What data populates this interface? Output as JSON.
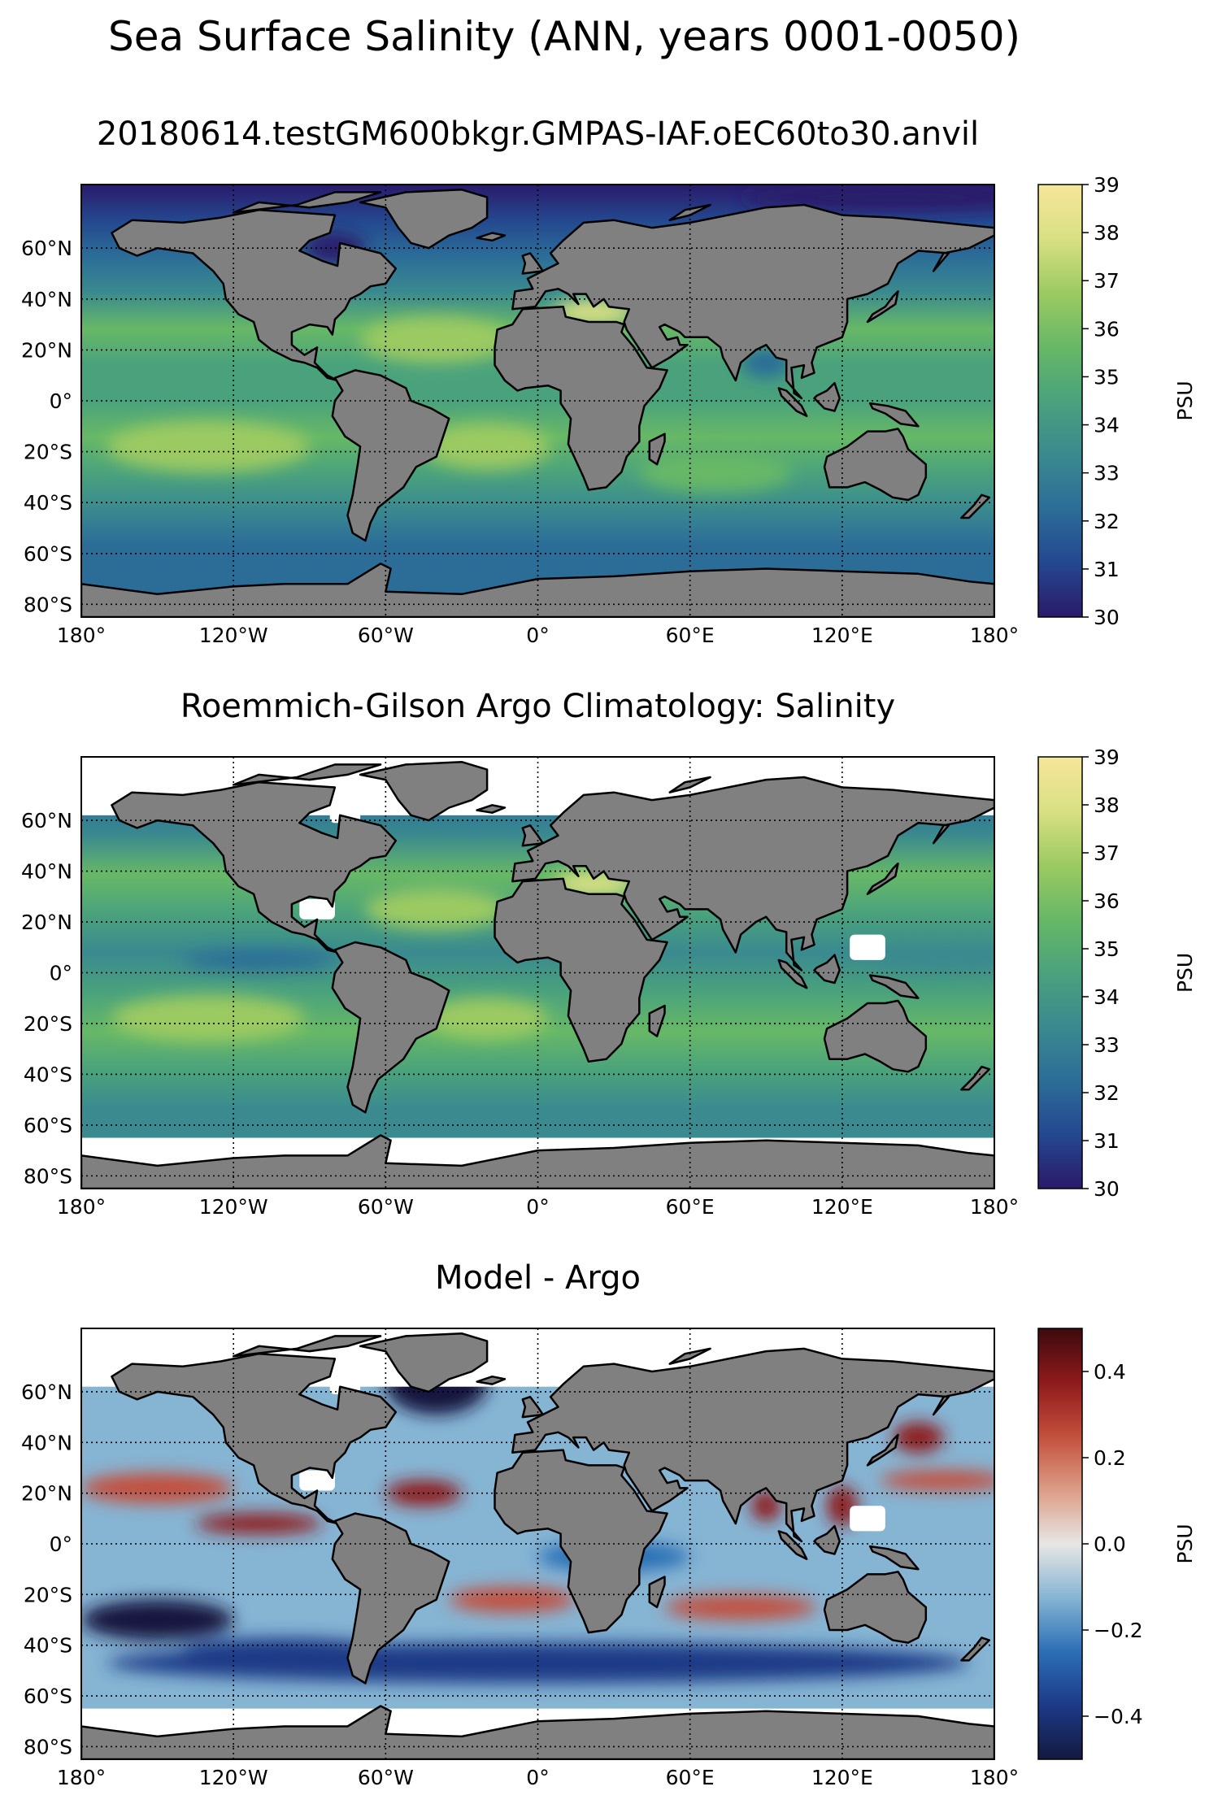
{
  "figure": {
    "suptitle": "Sea Surface Salinity (ANN, years 0001-0050)"
  },
  "axes": {
    "lon_ticks": [
      "180°",
      "120°W",
      "60°W",
      "0°",
      "60°E",
      "120°E",
      "180°"
    ],
    "lon_values": [
      -180,
      -120,
      -60,
      0,
      60,
      120,
      180
    ],
    "lat_ticks": [
      "60°N",
      "40°N",
      "20°N",
      "0°",
      "20°S",
      "40°S",
      "60°S",
      "80°S"
    ],
    "lat_values": [
      60,
      40,
      20,
      0,
      -20,
      -40,
      -60,
      -80
    ],
    "lon_range": [
      -180,
      180
    ],
    "lat_range": [
      -85,
      85
    ],
    "grid": "dotted"
  },
  "colors": {
    "land": "#808080",
    "missing": "#ffffff",
    "salinity_colormap": [
      "#2a1a6b",
      "#24488f",
      "#2c6d98",
      "#3a8a8f",
      "#4aa27c",
      "#67b866",
      "#9cca62",
      "#d9e084",
      "#f6e69a"
    ],
    "difference_colormap": [
      "#14193f",
      "#1c3a87",
      "#2c6fb6",
      "#86b4d3",
      "#e8e6e4",
      "#dc9c85",
      "#c2503c",
      "#8e1a1c",
      "#3d0a0e"
    ]
  },
  "panels": [
    {
      "title": "20180614.testGM600bkgr.GMPAS-IAF.oEC60to30.anvil",
      "kind": "model",
      "colorbar": {
        "label": "PSU",
        "min": 30,
        "max": 39,
        "ticks": [
          "39",
          "38",
          "37",
          "36",
          "35",
          "34",
          "33",
          "32",
          "31",
          "30"
        ],
        "tick_values": [
          39,
          38,
          37,
          36,
          35,
          34,
          33,
          32,
          31,
          30
        ]
      }
    },
    {
      "title": "Roemmich-Gilson Argo Climatology: Salinity",
      "kind": "obs",
      "colorbar": {
        "label": "PSU",
        "min": 30,
        "max": 39,
        "ticks": [
          "39",
          "38",
          "37",
          "36",
          "35",
          "34",
          "33",
          "32",
          "31",
          "30"
        ],
        "tick_values": [
          39,
          38,
          37,
          36,
          35,
          34,
          33,
          32,
          31,
          30
        ]
      }
    },
    {
      "title": "Model - Argo",
      "kind": "diff",
      "colorbar": {
        "label": "PSU",
        "min": -0.5,
        "max": 0.5,
        "ticks": [
          "0.4",
          "0.2",
          "0.0",
          "−0.2",
          "−0.4"
        ],
        "tick_values": [
          0.4,
          0.2,
          0.0,
          -0.2,
          -0.4
        ]
      }
    }
  ]
}
